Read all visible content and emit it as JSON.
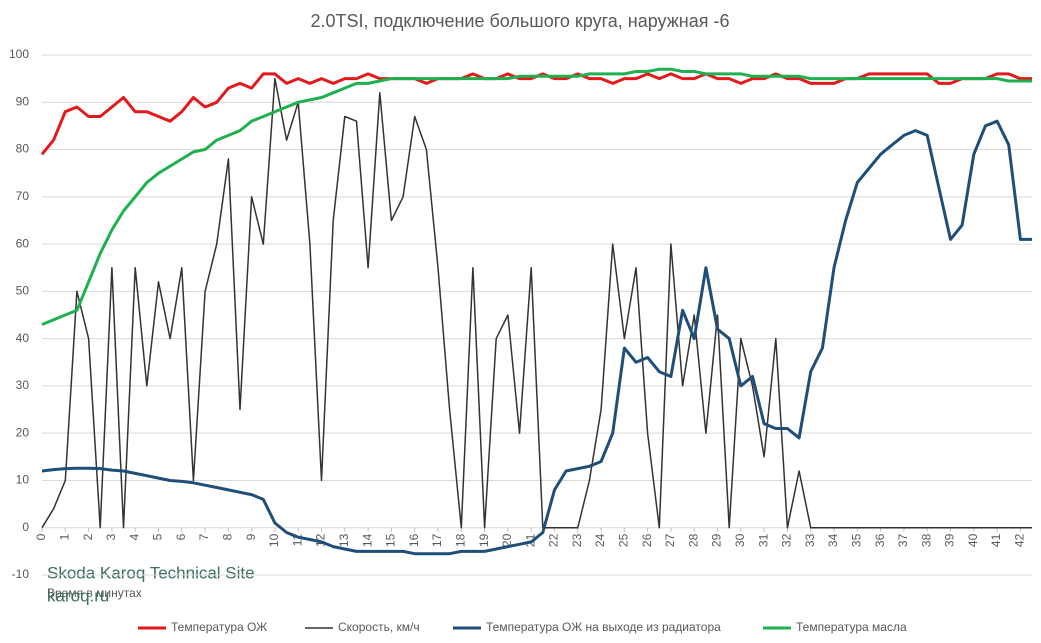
{
  "chart_data": {
    "type": "line",
    "title": "2.0TSI, подключение большого круга, наружная -6",
    "x_label": "Время в минутах",
    "watermark": [
      "Skoda Karoq Technical Site",
      "karoq.ru"
    ],
    "x": [
      0,
      0.5,
      1,
      1.5,
      2,
      2.5,
      3,
      3.5,
      4,
      4.5,
      5,
      5.5,
      6,
      6.5,
      7,
      7.5,
      8,
      8.5,
      9,
      9.5,
      10,
      10.5,
      11,
      11.5,
      12,
      12.5,
      13,
      13.5,
      14,
      14.5,
      15,
      15.5,
      16,
      16.5,
      17,
      17.5,
      18,
      18.5,
      19,
      19.5,
      20,
      20.5,
      21,
      21.5,
      22,
      22.5,
      23,
      23.5,
      24,
      24.5,
      25,
      25.5,
      26,
      26.5,
      27,
      27.5,
      28,
      28.5,
      29,
      29.5,
      30,
      30.5,
      31,
      31.5,
      32,
      32.5,
      33,
      33.5,
      34,
      34.5,
      35,
      35.5,
      36,
      36.5,
      37,
      37.5,
      38,
      38.5,
      39,
      39.5,
      40,
      40.5,
      41,
      41.5,
      42,
      42.5
    ],
    "series": [
      {
        "name": "Температура ОЖ",
        "color": "#e31a1c",
        "values": [
          79,
          82,
          88,
          89,
          87,
          87,
          89,
          91,
          88,
          88,
          87,
          86,
          88,
          91,
          89,
          90,
          93,
          94,
          93,
          96,
          96,
          94,
          95,
          94,
          95,
          94,
          95,
          95,
          96,
          95,
          95,
          95,
          95,
          94,
          95,
          95,
          95,
          96,
          95,
          95,
          96,
          95,
          95,
          96,
          95,
          95,
          96,
          95,
          95,
          94,
          95,
          95,
          96,
          95,
          96,
          95,
          95,
          96,
          95,
          95,
          94,
          95,
          95,
          96,
          95,
          95,
          94,
          94,
          94,
          95,
          95,
          96,
          96,
          96,
          96,
          96,
          96,
          94,
          94,
          95,
          95,
          95,
          96,
          96,
          95,
          95
        ]
      },
      {
        "name": "Скорость, км/ч",
        "color": "#333333",
        "values": [
          0,
          4,
          10,
          50,
          40,
          0,
          55,
          0,
          55,
          30,
          52,
          40,
          55,
          10,
          50,
          60,
          78,
          25,
          70,
          60,
          95,
          82,
          90,
          60,
          10,
          65,
          87,
          86,
          55,
          92,
          65,
          70,
          87,
          80,
          55,
          25,
          0,
          55,
          0,
          40,
          45,
          20,
          55,
          0,
          0,
          0,
          0,
          10,
          25,
          60,
          40,
          55,
          20,
          0,
          60,
          30,
          45,
          20,
          45,
          0,
          40,
          30,
          15,
          40,
          0,
          12,
          0,
          0,
          0,
          0,
          0,
          0,
          0,
          0,
          0,
          0,
          0,
          0,
          0,
          0,
          0,
          0,
          0,
          0,
          0,
          0
        ]
      },
      {
        "name": "Температура ОЖ на выходе из радиатора",
        "color": "#1f4e79",
        "values": [
          12,
          12.3,
          12.5,
          12.6,
          12.6,
          12.5,
          12.2,
          12,
          11.5,
          11,
          10.5,
          10,
          9.8,
          9.5,
          9,
          8.5,
          8,
          7.5,
          7,
          6,
          1,
          -1,
          -2,
          -2.5,
          -3,
          -4,
          -4.5,
          -5,
          -5,
          -5,
          -5,
          -5,
          -5.5,
          -5.5,
          -5.5,
          -5.5,
          -5,
          -5,
          -5,
          -4.5,
          -4,
          -3.5,
          -3,
          -1,
          8,
          12,
          12.5,
          13,
          14,
          20,
          38,
          35,
          36,
          33,
          32,
          46,
          40,
          55,
          42,
          40,
          30,
          32,
          22,
          21,
          21,
          19,
          33,
          38,
          55,
          65,
          73,
          76,
          79,
          81,
          83,
          84,
          83,
          72,
          61,
          64,
          79,
          85,
          86,
          81,
          61,
          61
        ]
      },
      {
        "name": "Температура масла",
        "color": "#1fb050",
        "values": [
          43,
          44,
          45,
          46,
          52,
          58,
          63,
          67,
          70,
          73,
          75,
          76.5,
          78,
          79.5,
          80,
          82,
          83,
          84,
          86,
          87,
          88,
          89,
          90,
          90.5,
          91,
          92,
          93,
          94,
          94,
          94.5,
          95,
          95,
          95,
          95,
          95,
          95,
          95,
          95,
          95,
          95,
          95,
          95.5,
          95.5,
          95.5,
          95.5,
          95.5,
          95.5,
          96,
          96,
          96,
          96,
          96.5,
          96.5,
          97,
          97,
          96.5,
          96.5,
          96,
          96,
          96,
          96,
          95.5,
          95.5,
          95.5,
          95.5,
          95.5,
          95,
          95,
          95,
          95,
          95,
          95,
          95,
          95,
          95,
          95,
          95,
          95,
          95,
          95,
          95,
          95,
          95,
          94.5,
          94.5,
          94.5
        ]
      }
    ],
    "xlim": [
      0,
      42.5
    ],
    "xticks": [
      0,
      1,
      2,
      3,
      4,
      5,
      6,
      7,
      8,
      9,
      10,
      11,
      12,
      13,
      14,
      15,
      16,
      17,
      18,
      19,
      20,
      21,
      22,
      23,
      24,
      25,
      26,
      27,
      28,
      29,
      30,
      31,
      32,
      33,
      34,
      35,
      36,
      37,
      38,
      39,
      40,
      41,
      42
    ],
    "ylim": [
      -10,
      100
    ],
    "yticks": [
      -10,
      0,
      10,
      20,
      30,
      40,
      50,
      60,
      70,
      80,
      90,
      100
    ],
    "grid": true,
    "legend": "bottom"
  }
}
